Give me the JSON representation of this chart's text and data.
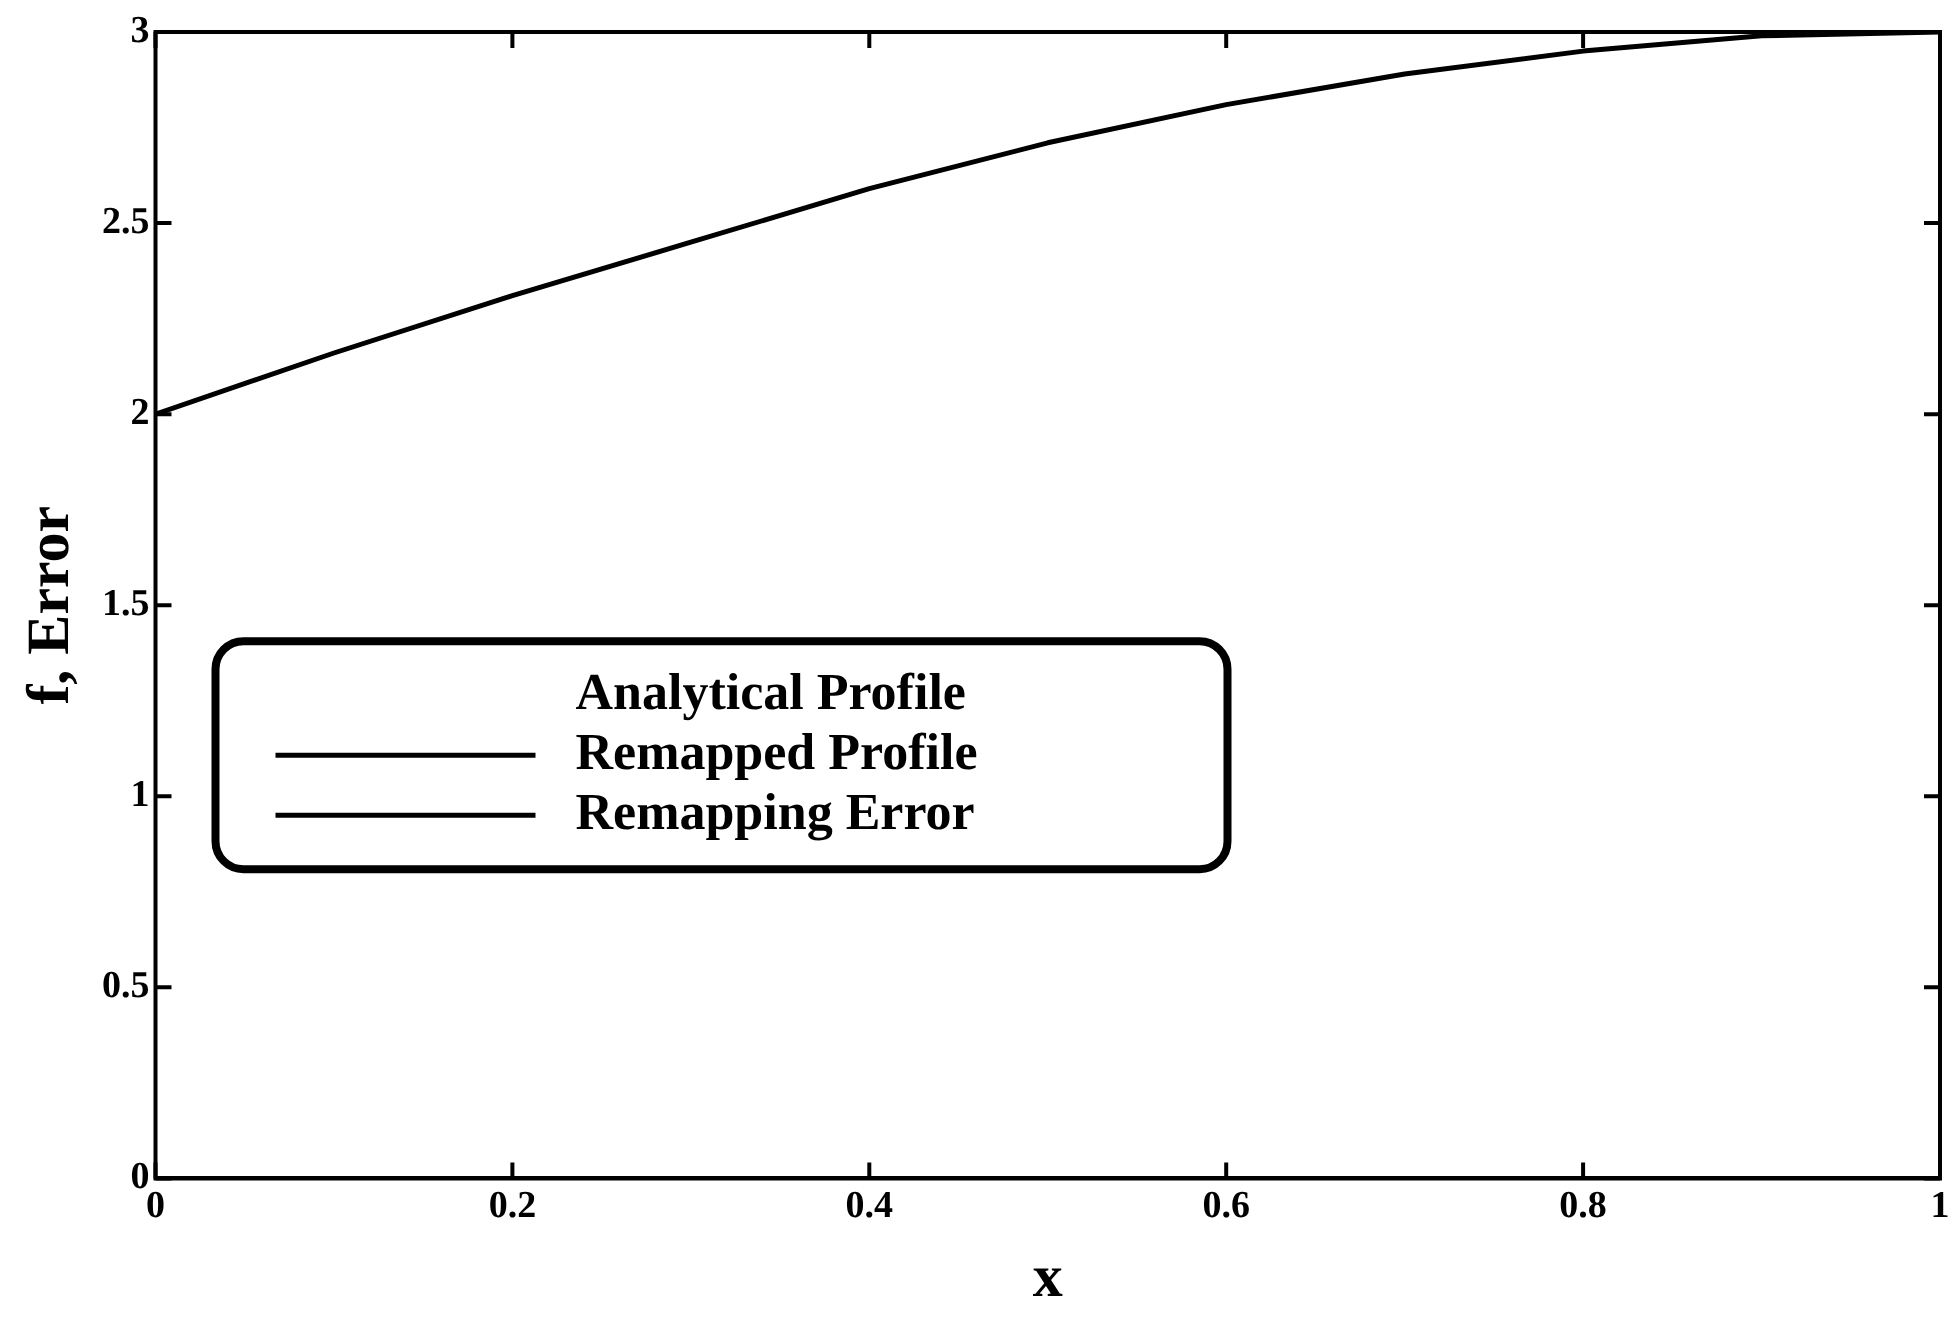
{
  "chart_data": {
    "type": "line",
    "xlabel": "x",
    "ylabel": "f, Error",
    "x": [
      0,
      0.1,
      0.2,
      0.3,
      0.4,
      0.5,
      0.6,
      0.7,
      0.8,
      0.9,
      1
    ],
    "series": [
      {
        "name": "Analytical Profile",
        "values": [
          null,
          null,
          null,
          null,
          null,
          null,
          null,
          null,
          null,
          null,
          null
        ]
      },
      {
        "name": "Remapped Profile",
        "color": "#000000",
        "values": [
          2.0,
          2.16,
          2.31,
          2.45,
          2.59,
          2.71,
          2.81,
          2.89,
          2.95,
          2.99,
          3.0
        ]
      },
      {
        "name": "Remapping Error",
        "color": "#000000",
        "values": [
          0,
          0,
          0,
          0,
          0,
          0,
          0,
          0,
          0,
          0,
          0
        ]
      }
    ],
    "xlim": [
      0,
      1
    ],
    "xticks": [
      0,
      0.2,
      0.4,
      0.6,
      0.8,
      1
    ],
    "ylim": [
      0,
      3
    ],
    "yticks": [
      0,
      0.5,
      1,
      1.5,
      2,
      2.5,
      3
    ],
    "grid": false,
    "legend": "left",
    "marker": "none",
    "line_style": "solid"
  }
}
